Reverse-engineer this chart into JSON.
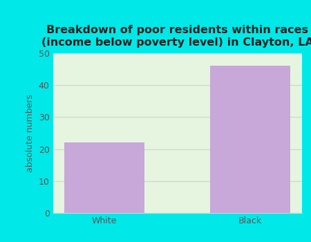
{
  "title": "Breakdown of poor residents within races\n(income below poverty level) in Clayton, LA",
  "categories": [
    "White",
    "Black"
  ],
  "values": [
    22,
    46
  ],
  "bar_color": "#c8a8d8",
  "ylabel": "absolute numbers",
  "ylim": [
    0,
    50
  ],
  "yticks": [
    0,
    10,
    20,
    30,
    40,
    50
  ],
  "background_outer": "#00e8e8",
  "background_plot": "#e6f5e0",
  "title_fontsize": 11.5,
  "title_color": "#222222",
  "axis_label_fontsize": 9,
  "tick_fontsize": 9,
  "tick_color": "#555555",
  "bar_width": 0.55,
  "grid_color": "#c8dfc8",
  "figsize": [
    4.5,
    3.5
  ],
  "dpi": 100
}
